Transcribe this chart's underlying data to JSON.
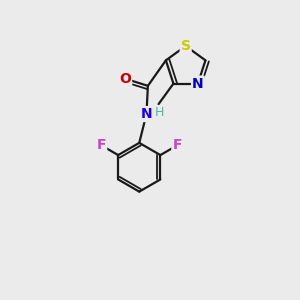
{
  "background_color": "#ebebeb",
  "bond_color": "#1a1a1a",
  "atom_colors": {
    "S": "#cccc00",
    "N_thiazole": "#0000cc",
    "N_amide": "#1a00ee",
    "O": "#cc0000",
    "F": "#cc44cc",
    "H": "#44bbaa",
    "C": "#1a1a1a"
  },
  "figsize": [
    3.0,
    3.0
  ],
  "dpi": 100
}
